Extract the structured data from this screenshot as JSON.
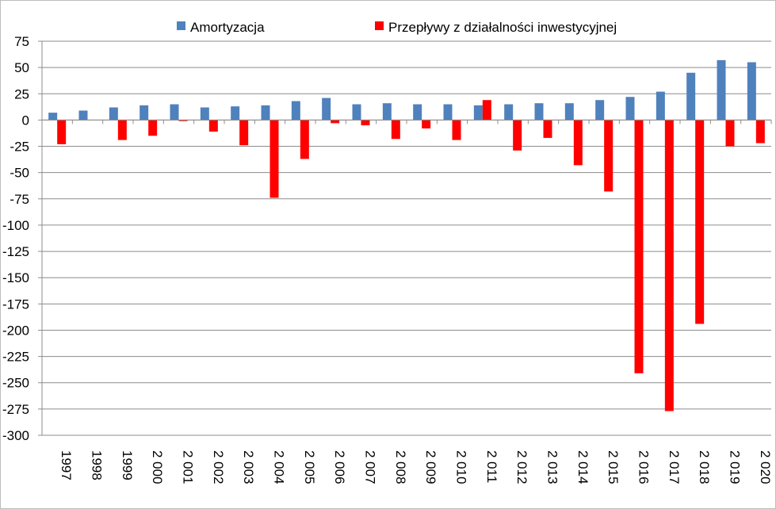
{
  "chart_data": {
    "type": "bar",
    "title": "",
    "xlabel": "",
    "ylabel": "",
    "ylim": [
      -300,
      75
    ],
    "yticks": [
      75,
      50,
      25,
      0,
      -25,
      -50,
      -75,
      -100,
      -125,
      -150,
      -175,
      -200,
      -225,
      -250,
      -275,
      -300
    ],
    "grid": true,
    "legend_position": "top",
    "categories": [
      "1997",
      "1998",
      "1999",
      "2 000",
      "2 001",
      "2 002",
      "2 003",
      "2 004",
      "2 005",
      "2 006",
      "2 007",
      "2 008",
      "2 009",
      "2 010",
      "2 011",
      "2 012",
      "2 013",
      "2 014",
      "2 015",
      "2 016",
      "2 017",
      "2 018",
      "2 019",
      "2 020"
    ],
    "series": [
      {
        "name": "Amortyzacja",
        "color": "#4f81bd",
        "values": [
          7,
          9,
          12,
          14,
          15,
          12,
          13,
          14,
          18,
          21,
          15,
          16,
          15,
          15,
          14,
          15,
          16,
          16,
          19,
          22,
          27,
          45,
          57,
          55
        ]
      },
      {
        "name": "Przepływy z działalności inwestycyjnej",
        "color": "#ff0000",
        "values": [
          -23,
          0,
          -19,
          -15,
          -1,
          -11,
          -24,
          -74,
          -37,
          -3,
          -5,
          -18,
          -8,
          -19,
          19,
          -29,
          -17,
          -43,
          -68,
          -241,
          -277,
          -194,
          -25,
          -22
        ]
      }
    ]
  }
}
